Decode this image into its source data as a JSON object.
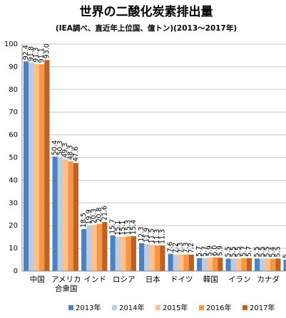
{
  "chart_data": {
    "type": "bar",
    "title": "世界の二酸化炭素排出量",
    "subtitle": "(IEA調べ、直近年上位国、億トン)(2013～2017年)",
    "categories": [
      "中国",
      "アメリカ合衆国",
      "インド",
      "ロシア",
      "日本",
      "ドイツ",
      "韓国",
      "イラン",
      "カナダ",
      null
    ],
    "series": [
      {
        "name": "2013年",
        "color": "#4f81bd",
        "values": [
          92.4,
          50.4,
          18.5,
          15.7,
          12.3,
          7.6,
          5.7,
          5.5,
          5.5,
          5
        ],
        "value_labels": [
          "92.4",
          "50.4",
          "18.5",
          "15.7",
          "12.3",
          "7.6",
          "5.7",
          "5.5",
          "5.5",
          "5"
        ]
      },
      {
        "name": "2014年",
        "color": "#b9cde5",
        "values": [
          91.8,
          50.3,
          19.9,
          15.1,
          11.9,
          7.2,
          5.7,
          5.5,
          5.5,
          null
        ],
        "value_labels": [
          "91.8",
          "50.3",
          "19.9",
          "15.1",
          "11.9",
          "7.2",
          "5.7",
          "5.5",
          "5.5",
          null
        ]
      },
      {
        "name": "2015年",
        "color": "#fac090",
        "values": [
          91.3,
          49.3,
          20.3,
          15.1,
          11.5,
          7.3,
          5.9,
          5.5,
          5.5,
          null
        ],
        "value_labels": [
          "91.3",
          "49.3",
          "20.3",
          "15.1",
          "11.5",
          "7.3",
          "5.9",
          "5.5",
          "5.5",
          null
        ]
      },
      {
        "name": "2016年",
        "color": "#f79646",
        "values": [
          91.1,
          48.3,
          20.8,
          15.3,
          11.3,
          7.3,
          6.0,
          5.7,
          5.4,
          null
        ],
        "value_labels": [
          "91.1",
          "48.3",
          "20.8",
          "15.3",
          "11.3",
          "7.3",
          "6.0",
          "5.7",
          "5.4",
          null
        ]
      },
      {
        "name": "2017年",
        "color": "#c0621f",
        "values": [
          93.0,
          47.6,
          21.6,
          15.4,
          11.3,
          7.2,
          5.9,
          5.7,
          5.5,
          null
        ],
        "value_labels": [
          "93.0",
          "47.6",
          "21.6",
          "15.4",
          "11.3",
          "7.2",
          "5.9",
          "5.7",
          "5.5",
          null
        ]
      }
    ],
    "ylim": [
      0,
      100
    ],
    "yticks": [
      0,
      10,
      20,
      30,
      40,
      50,
      60,
      70,
      80,
      90,
      100
    ],
    "grid": true,
    "legend": "bottom"
  }
}
